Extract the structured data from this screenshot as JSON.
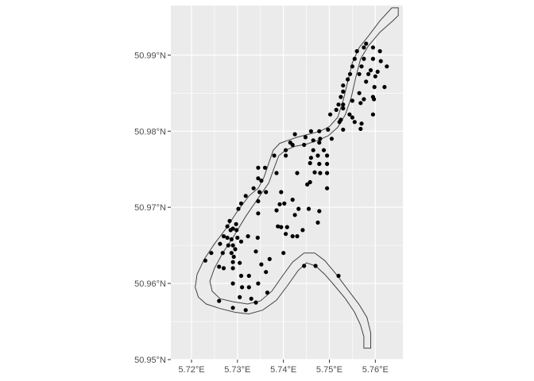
{
  "chart_data": {
    "type": "scatter",
    "title": "",
    "xlabel": "",
    "ylabel": "",
    "xlim": [
      5.7155,
      5.766
    ],
    "ylim": [
      50.95,
      50.9965
    ],
    "x_ticks": [
      {
        "value": 5.72,
        "label": "5.72°E"
      },
      {
        "value": 5.73,
        "label": "5.73°E"
      },
      {
        "value": 5.74,
        "label": "5.74°E"
      },
      {
        "value": 5.75,
        "label": "5.75°E"
      },
      {
        "value": 5.76,
        "label": "5.76°E"
      }
    ],
    "y_ticks": [
      {
        "value": 50.95,
        "label": "50.95°N"
      },
      {
        "value": 50.96,
        "label": "50.96°N"
      },
      {
        "value": 50.97,
        "label": "50.97°N"
      },
      {
        "value": 50.98,
        "label": "50.98°N"
      },
      {
        "value": 50.99,
        "label": "50.99°N"
      }
    ],
    "grid": true,
    "colors": {
      "panel": "#ebebeb",
      "grid": "#ffffff",
      "point": "#000000",
      "polygon_fill": "#ebebeb",
      "polygon_stroke": "#444444",
      "tick_text": "#4d4d4d"
    },
    "polygon": [
      [
        5.765,
        50.9962
      ],
      [
        5.7636,
        50.9962
      ],
      [
        5.761,
        50.9945
      ],
      [
        5.7585,
        50.9925
      ],
      [
        5.7565,
        50.991
      ],
      [
        5.755,
        50.989
      ],
      [
        5.754,
        50.9865
      ],
      [
        5.753,
        50.984
      ],
      [
        5.7518,
        50.9818
      ],
      [
        5.75,
        50.9806
      ],
      [
        5.748,
        50.98
      ],
      [
        5.7455,
        50.9796
      ],
      [
        5.743,
        50.9792
      ],
      [
        5.741,
        50.9788
      ],
      [
        5.7392,
        50.9784
      ],
      [
        5.7378,
        50.9775
      ],
      [
        5.7368,
        50.9758
      ],
      [
        5.7358,
        50.974
      ],
      [
        5.7345,
        50.9725
      ],
      [
        5.7325,
        50.9715
      ],
      [
        5.73,
        50.9695
      ],
      [
        5.7275,
        50.9672
      ],
      [
        5.725,
        50.9652
      ],
      [
        5.7228,
        50.9632
      ],
      [
        5.7212,
        50.9612
      ],
      [
        5.7208,
        50.9595
      ],
      [
        5.7215,
        50.9582
      ],
      [
        5.7232,
        50.9573
      ],
      [
        5.7262,
        50.9567
      ],
      [
        5.7295,
        50.9562
      ],
      [
        5.7325,
        50.956
      ],
      [
        5.7355,
        50.9565
      ],
      [
        5.7385,
        50.9578
      ],
      [
        5.741,
        50.9598
      ],
      [
        5.7432,
        50.9617
      ],
      [
        5.745,
        50.9627
      ],
      [
        5.747,
        50.9623
      ],
      [
        5.749,
        50.9612
      ],
      [
        5.751,
        50.9598
      ],
      [
        5.7535,
        50.958
      ],
      [
        5.7555,
        50.9562
      ],
      [
        5.7568,
        50.9545
      ],
      [
        5.7575,
        50.953
      ],
      [
        5.7575,
        50.9515
      ],
      [
        5.759,
        50.9515
      ],
      [
        5.759,
        50.9535
      ],
      [
        5.7582,
        50.9555
      ],
      [
        5.7565,
        50.9572
      ],
      [
        5.754,
        50.9592
      ],
      [
        5.7515,
        50.9612
      ],
      [
        5.749,
        50.963
      ],
      [
        5.7468,
        50.964
      ],
      [
        5.7445,
        50.964
      ],
      [
        5.742,
        50.9628
      ],
      [
        5.7398,
        50.961
      ],
      [
        5.7375,
        50.959
      ],
      [
        5.735,
        50.9577
      ],
      [
        5.7322,
        50.9573
      ],
      [
        5.729,
        50.9576
      ],
      [
        5.7262,
        50.958
      ],
      [
        5.7245,
        50.959
      ],
      [
        5.724,
        50.9603
      ],
      [
        5.725,
        50.962
      ],
      [
        5.7268,
        50.964
      ],
      [
        5.7292,
        50.9662
      ],
      [
        5.7318,
        50.9688
      ],
      [
        5.7345,
        50.9712
      ],
      [
        5.7368,
        50.9732
      ],
      [
        5.738,
        50.9752
      ],
      [
        5.739,
        50.9768
      ],
      [
        5.7405,
        50.9775
      ],
      [
        5.7425,
        50.978
      ],
      [
        5.745,
        50.9783
      ],
      [
        5.7475,
        50.9788
      ],
      [
        5.7498,
        50.9794
      ],
      [
        5.7518,
        50.9805
      ],
      [
        5.7535,
        50.9822
      ],
      [
        5.7548,
        50.9845
      ],
      [
        5.7558,
        50.9872
      ],
      [
        5.7568,
        50.9895
      ],
      [
        5.7585,
        50.9912
      ],
      [
        5.761,
        50.993
      ],
      [
        5.7638,
        50.9945
      ],
      [
        5.765,
        50.9952
      ]
    ],
    "points": [
      [
        5.758,
        50.9915
      ],
      [
        5.756,
        50.9905
      ],
      [
        5.7575,
        50.991
      ],
      [
        5.7595,
        50.991
      ],
      [
        5.761,
        50.9905
      ],
      [
        5.7555,
        50.9895
      ],
      [
        5.7575,
        50.9895
      ],
      [
        5.7595,
        50.9895
      ],
      [
        5.7612,
        50.9892
      ],
      [
        5.7625,
        50.9885
      ],
      [
        5.755,
        50.9885
      ],
      [
        5.757,
        50.9885
      ],
      [
        5.759,
        50.988
      ],
      [
        5.7605,
        50.9878
      ],
      [
        5.7545,
        50.9875
      ],
      [
        5.7565,
        50.9875
      ],
      [
        5.7585,
        50.9875
      ],
      [
        5.76,
        50.9872
      ],
      [
        5.754,
        50.9868
      ],
      [
        5.758,
        50.9865
      ],
      [
        5.753,
        50.986
      ],
      [
        5.7598,
        50.9858
      ],
      [
        5.762,
        50.9858
      ],
      [
        5.753,
        50.9852
      ],
      [
        5.7565,
        50.985
      ],
      [
        5.7595,
        50.9845
      ],
      [
        5.7525,
        50.9845
      ],
      [
        5.755,
        50.984
      ],
      [
        5.7575,
        50.9842
      ],
      [
        5.7597,
        50.9842
      ],
      [
        5.7568,
        50.9837
      ],
      [
        5.752,
        50.9835
      ],
      [
        5.753,
        50.9835
      ],
      [
        5.7515,
        50.9828
      ],
      [
        5.753,
        50.983
      ],
      [
        5.7502,
        50.9822
      ],
      [
        5.7544,
        50.9822
      ],
      [
        5.7595,
        50.9822
      ],
      [
        5.7525,
        50.9815
      ],
      [
        5.755,
        50.9818
      ],
      [
        5.7555,
        50.9812
      ],
      [
        5.7522,
        50.9812
      ],
      [
        5.757,
        50.981
      ],
      [
        5.7568,
        50.9803
      ],
      [
        5.7497,
        50.9802
      ],
      [
        5.7478,
        50.98
      ],
      [
        5.746,
        50.98
      ],
      [
        5.753,
        50.9802
      ],
      [
        5.7425,
        50.9796
      ],
      [
        5.7448,
        50.9792
      ],
      [
        5.7465,
        50.9788
      ],
      [
        5.7478,
        50.9785
      ],
      [
        5.7505,
        50.979
      ],
      [
        5.748,
        50.979
      ],
      [
        5.7415,
        50.9785
      ],
      [
        5.742,
        50.9782
      ],
      [
        5.7445,
        50.9782
      ],
      [
        5.7405,
        50.9775
      ],
      [
        5.7488,
        50.9775
      ],
      [
        5.7465,
        50.9775
      ],
      [
        5.738,
        50.9768
      ],
      [
        5.746,
        50.9765
      ],
      [
        5.7475,
        50.9768
      ],
      [
        5.7405,
        50.9768
      ],
      [
        5.7495,
        50.9768
      ],
      [
        5.7458,
        50.9758
      ],
      [
        5.7478,
        50.9757
      ],
      [
        5.7495,
        50.9757
      ],
      [
        5.736,
        50.9752
      ],
      [
        5.7345,
        50.9752
      ],
      [
        5.7385,
        50.9745
      ],
      [
        5.743,
        50.9745
      ],
      [
        5.7468,
        50.9746
      ],
      [
        5.748,
        50.9745
      ],
      [
        5.7495,
        50.9745
      ],
      [
        5.7345,
        50.9738
      ],
      [
        5.7352,
        50.9735
      ],
      [
        5.7458,
        50.9733
      ],
      [
        5.7452,
        50.973
      ],
      [
        5.7495,
        50.9725
      ],
      [
        5.7335,
        50.9725
      ],
      [
        5.7348,
        50.972
      ],
      [
        5.7362,
        50.972
      ],
      [
        5.7395,
        50.972
      ],
      [
        5.7318,
        50.9715
      ],
      [
        5.7345,
        50.9708
      ],
      [
        5.7402,
        50.9705
      ],
      [
        5.7392,
        50.9704
      ],
      [
        5.742,
        50.971
      ],
      [
        5.7308,
        50.9705
      ],
      [
        5.7302,
        50.9698
      ],
      [
        5.7385,
        50.9696
      ],
      [
        5.7433,
        50.9698
      ],
      [
        5.7455,
        50.9698
      ],
      [
        5.7478,
        50.9695
      ],
      [
        5.7345,
        50.9692
      ],
      [
        5.7425,
        50.969
      ],
      [
        5.7475,
        50.968
      ],
      [
        5.7283,
        50.9682
      ],
      [
        5.7297,
        50.9678
      ],
      [
        5.7278,
        50.9675
      ],
      [
        5.729,
        50.9672
      ],
      [
        5.7285,
        50.967
      ],
      [
        5.7298,
        50.967
      ],
      [
        5.7388,
        50.9675
      ],
      [
        5.7395,
        50.9674
      ],
      [
        5.7408,
        50.9674
      ],
      [
        5.7442,
        50.967
      ],
      [
        5.7405,
        50.9665
      ],
      [
        5.742,
        50.9662
      ],
      [
        5.743,
        50.9662
      ],
      [
        5.727,
        50.9662
      ],
      [
        5.7278,
        50.966
      ],
      [
        5.7287,
        50.9658
      ],
      [
        5.73,
        50.966
      ],
      [
        5.7323,
        50.9662
      ],
      [
        5.7344,
        50.966
      ],
      [
        5.7262,
        50.9652
      ],
      [
        5.728,
        50.965
      ],
      [
        5.729,
        50.965
      ],
      [
        5.7308,
        50.9655
      ],
      [
        5.7295,
        50.9645
      ],
      [
        5.7287,
        50.964
      ],
      [
        5.7292,
        50.9635
      ],
      [
        5.734,
        50.9642
      ],
      [
        5.7243,
        50.964
      ],
      [
        5.7268,
        50.964
      ],
      [
        5.737,
        50.9632
      ],
      [
        5.74,
        50.964
      ],
      [
        5.723,
        50.963
      ],
      [
        5.729,
        50.9628
      ],
      [
        5.7305,
        50.9627
      ],
      [
        5.7352,
        50.9625
      ],
      [
        5.726,
        50.9622
      ],
      [
        5.727,
        50.962
      ],
      [
        5.729,
        50.962
      ],
      [
        5.7445,
        50.9623
      ],
      [
        5.747,
        50.9623
      ],
      [
        5.7362,
        50.9615
      ],
      [
        5.7308,
        50.961
      ],
      [
        5.7325,
        50.961
      ],
      [
        5.752,
        50.961
      ],
      [
        5.729,
        50.96
      ],
      [
        5.7345,
        50.96
      ],
      [
        5.731,
        50.9595
      ],
      [
        5.7325,
        50.9595
      ],
      [
        5.7365,
        50.9588
      ],
      [
        5.7305,
        50.9582
      ],
      [
        5.733,
        50.958
      ],
      [
        5.734,
        50.9575
      ],
      [
        5.726,
        50.9577
      ],
      [
        5.729,
        50.9568
      ],
      [
        5.7318,
        50.9565
      ]
    ]
  }
}
